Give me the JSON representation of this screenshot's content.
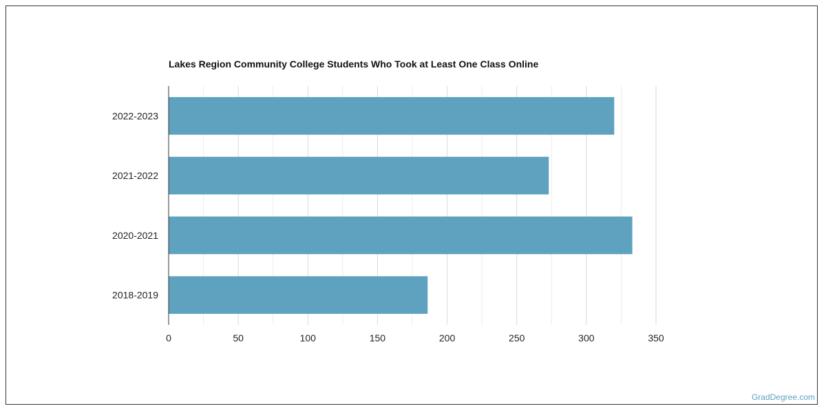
{
  "chart_data": {
    "type": "bar",
    "orientation": "horizontal",
    "title": "Lakes Region Community College Students Who Took at Least One Class Online",
    "categories": [
      "2022-2023",
      "2021-2022",
      "2020-2021",
      "2018-2019"
    ],
    "values": [
      320,
      273,
      333,
      186
    ],
    "xlim": [
      0,
      350
    ],
    "xticks": [
      0,
      50,
      100,
      150,
      200,
      250,
      300,
      350
    ],
    "xlabel": "",
    "ylabel": "",
    "grid": true,
    "bar_color": "#5ea2c0"
  },
  "watermark": "GradDegree.com"
}
